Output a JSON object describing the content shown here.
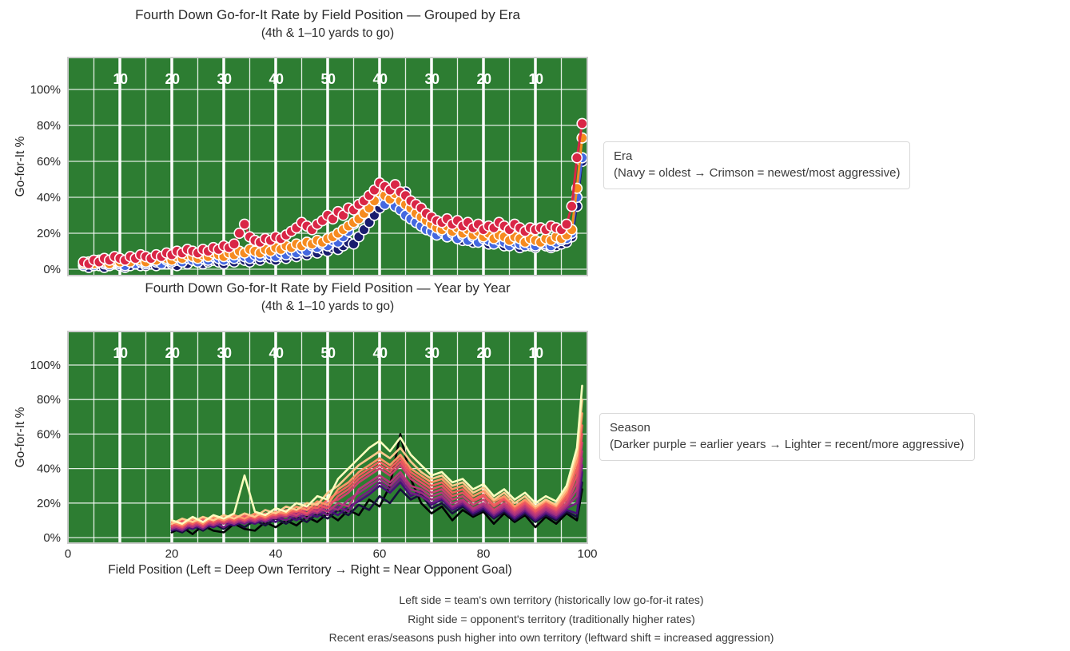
{
  "charts": [
    {
      "title": "Fourth Down Go-for-It Rate by Field Position — Grouped by Era",
      "subtitle": "(4th & 1–10 yards to go)",
      "legend_title": "Era",
      "legend_subtitle": "(Navy = oldest → Crimson = newest/most aggressive)",
      "ylabel": "Go-for-It %"
    },
    {
      "title": "Fourth Down Go-for-It Rate by Field Position — Year by Year",
      "subtitle": "(4th & 1–10 yards to go)",
      "legend_title": "Season",
      "legend_subtitle": "(Darker purple = earlier years → Lighter = recent/more aggressive)",
      "ylabel": "Go-for-It %",
      "xlabel": "Field Position (Left = Deep Own Territory → Right = Near Opponent Goal)"
    }
  ],
  "figure": {
    "footnotes": [
      "Left side = team's own territory (historically low go-for-it rates)",
      "Right side = opponent's territory (traditionally higher rates)",
      "Recent eras/seasons push higher into own territory (leftward shift = increased aggression)"
    ]
  },
  "chart_data": [
    {
      "type": "scatter",
      "title": "Fourth Down Go-for-It Rate by Field Position — Grouped by Era (4th & 1–10 yards to go)",
      "ylabel": "Go-for-It %",
      "xlim": [
        0,
        100
      ],
      "ylim": [
        0,
        118
      ],
      "yticks": [
        0,
        20,
        40,
        60,
        80,
        100
      ],
      "ytick_labels": [
        "0%",
        "20%",
        "40%",
        "60%",
        "80%",
        "100%"
      ],
      "yard_lines": [
        10,
        20,
        30,
        40,
        50,
        60,
        70,
        80,
        90
      ],
      "yard_labels": [
        "10",
        "20",
        "30",
        "40",
        "50",
        "40",
        "30",
        "20",
        "10"
      ],
      "field_color": "#2d7d32",
      "grid_color": "#ffffff",
      "border_color": "#cccccc",
      "marker_edge_color": "#ffffff",
      "x_start": 3,
      "x_step": 1,
      "series": [
        {
          "name": "era-1-oldest-navy",
          "color": "#1a1d6e",
          "values": [
            2,
            1,
            3,
            2,
            1,
            2,
            3,
            2,
            1,
            2,
            3,
            2,
            2,
            3,
            2,
            4,
            3,
            3,
            2,
            4,
            3,
            5,
            4,
            3,
            4,
            5,
            4,
            3,
            5,
            4,
            6,
            5,
            4,
            6,
            5,
            7,
            6,
            5,
            7,
            6,
            8,
            7,
            9,
            8,
            10,
            9,
            11,
            10,
            12,
            11,
            13,
            15,
            14,
            18,
            22,
            26,
            30,
            34,
            38,
            42,
            44,
            41,
            43,
            38,
            35,
            32,
            28,
            25,
            22,
            20,
            18,
            19,
            17,
            16,
            18,
            15,
            17,
            16,
            14,
            16,
            15,
            13,
            15,
            14,
            12,
            14,
            13,
            12,
            14,
            13,
            12,
            13,
            14,
            15,
            18,
            35,
            60
          ]
        },
        {
          "name": "era-2-royal-blue",
          "color": "#4468e0",
          "values": [
            2,
            3,
            2,
            4,
            3,
            2,
            4,
            3,
            2,
            4,
            3,
            4,
            3,
            5,
            4,
            3,
            5,
            4,
            5,
            4,
            6,
            5,
            4,
            6,
            5,
            7,
            6,
            5,
            7,
            6,
            8,
            7,
            6,
            8,
            7,
            9,
            8,
            7,
            9,
            8,
            10,
            9,
            11,
            10,
            13,
            12,
            14,
            13,
            16,
            15,
            18,
            21,
            25,
            28,
            32,
            36,
            40,
            38,
            36,
            39,
            35,
            33,
            30,
            28,
            26,
            24,
            22,
            21,
            19,
            21,
            18,
            20,
            17,
            19,
            16,
            18,
            15,
            17,
            16,
            14,
            16,
            15,
            13,
            15,
            14,
            13,
            14,
            13,
            15,
            14,
            13,
            15,
            16,
            17,
            20,
            40,
            62
          ]
        },
        {
          "name": "era-3-orange",
          "color": "#f68b1f",
          "values": [
            3,
            4,
            3,
            5,
            4,
            3,
            5,
            4,
            5,
            4,
            6,
            5,
            4,
            6,
            5,
            7,
            6,
            5,
            7,
            6,
            8,
            7,
            6,
            8,
            7,
            9,
            8,
            7,
            9,
            8,
            10,
            9,
            11,
            10,
            9,
            11,
            10,
            12,
            11,
            13,
            12,
            14,
            13,
            15,
            14,
            16,
            15,
            17,
            18,
            20,
            22,
            24,
            26,
            28,
            31,
            34,
            38,
            43,
            41,
            39,
            42,
            38,
            36,
            34,
            31,
            29,
            27,
            25,
            23,
            22,
            24,
            21,
            23,
            20,
            22,
            19,
            21,
            18,
            20,
            17,
            19,
            18,
            16,
            18,
            17,
            15,
            17,
            16,
            15,
            17,
            16,
            18,
            17,
            19,
            22,
            45,
            73
          ]
        },
        {
          "name": "era-4-newest-crimson",
          "color": "#d92646",
          "values": [
            4,
            3,
            5,
            4,
            6,
            5,
            7,
            6,
            5,
            7,
            6,
            8,
            7,
            6,
            8,
            7,
            9,
            8,
            10,
            9,
            11,
            10,
            9,
            11,
            10,
            12,
            11,
            13,
            12,
            14,
            20,
            25,
            18,
            16,
            15,
            17,
            16,
            18,
            17,
            19,
            21,
            23,
            26,
            24,
            22,
            25,
            27,
            30,
            28,
            32,
            30,
            34,
            33,
            36,
            38,
            41,
            44,
            48,
            46,
            44,
            47,
            43,
            41,
            38,
            36,
            34,
            31,
            29,
            27,
            26,
            28,
            25,
            27,
            24,
            26,
            23,
            25,
            22,
            24,
            23,
            26,
            24,
            22,
            25,
            23,
            21,
            23,
            22,
            23,
            22,
            24,
            23,
            22,
            25,
            35,
            62,
            81
          ]
        }
      ]
    },
    {
      "type": "line",
      "title": "Fourth Down Go-for-It Rate by Field Position — Year by Year (4th & 1–10 yards to go)",
      "xlabel": "Field Position (Left = Deep Own Territory → Right = Near Opponent Goal)",
      "ylabel": "Go-for-It %",
      "xlim": [
        0,
        100
      ],
      "ylim": [
        0,
        118
      ],
      "yticks": [
        0,
        20,
        40,
        60,
        80,
        100
      ],
      "ytick_labels": [
        "0%",
        "20%",
        "40%",
        "60%",
        "80%",
        "100%"
      ],
      "xticks": [
        0,
        20,
        40,
        60,
        80,
        100
      ],
      "yard_lines": [
        10,
        20,
        30,
        40,
        50,
        60,
        70,
        80,
        90
      ],
      "yard_labels": [
        "10",
        "20",
        "30",
        "40",
        "50",
        "40",
        "30",
        "20",
        "10"
      ],
      "field_color": "#2d7d32",
      "grid_color": "#ffffff",
      "border_color": "#cccccc",
      "x": [
        20,
        22,
        24,
        26,
        28,
        30,
        32,
        34,
        36,
        38,
        40,
        42,
        44,
        46,
        48,
        50,
        52,
        54,
        56,
        58,
        60,
        62,
        64,
        66,
        68,
        70,
        72,
        74,
        76,
        78,
        80,
        82,
        84,
        86,
        88,
        90,
        92,
        94,
        96,
        98,
        99
      ],
      "series": [
        {
          "name": "season-01-darkest",
          "color": "#000004",
          "values": [
            3,
            6,
            2,
            7,
            4,
            3,
            8,
            5,
            4,
            9,
            6,
            10,
            7,
            12,
            9,
            14,
            10,
            16,
            13,
            22,
            18,
            30,
            60,
            34,
            20,
            14,
            18,
            10,
            16,
            12,
            15,
            8,
            14,
            9,
            13,
            6,
            12,
            8,
            14,
            10,
            28
          ]
        },
        {
          "name": "season-02",
          "color": "#180f3e",
          "values": [
            5,
            3,
            7,
            4,
            8,
            5,
            9,
            6,
            10,
            7,
            11,
            8,
            12,
            9,
            14,
            11,
            16,
            13,
            19,
            16,
            24,
            20,
            28,
            22,
            25,
            17,
            20,
            14,
            18,
            13,
            16,
            11,
            15,
            10,
            14,
            9,
            13,
            10,
            15,
            12,
            32
          ]
        },
        {
          "name": "season-03",
          "color": "#451077",
          "values": [
            4,
            7,
            5,
            8,
            6,
            9,
            7,
            10,
            8,
            11,
            9,
            13,
            10,
            14,
            12,
            16,
            13,
            18,
            21,
            25,
            30,
            26,
            32,
            24,
            27,
            19,
            22,
            16,
            19,
            14,
            17,
            12,
            16,
            11,
            15,
            10,
            14,
            11,
            16,
            14,
            38
          ]
        },
        {
          "name": "season-04",
          "color": "#721f81",
          "values": [
            6,
            4,
            8,
            5,
            9,
            6,
            10,
            8,
            11,
            9,
            12,
            10,
            14,
            11,
            16,
            13,
            18,
            15,
            23,
            27,
            32,
            28,
            34,
            26,
            24,
            20,
            23,
            17,
            20,
            15,
            18,
            13,
            17,
            12,
            16,
            11,
            15,
            12,
            17,
            20,
            42
          ]
        },
        {
          "name": "season-05",
          "color": "#9f2f7f",
          "values": [
            5,
            8,
            6,
            9,
            7,
            10,
            8,
            11,
            9,
            12,
            11,
            14,
            12,
            16,
            14,
            18,
            16,
            22,
            26,
            30,
            34,
            30,
            36,
            28,
            26,
            22,
            24,
            18,
            21,
            16,
            19,
            14,
            18,
            13,
            17,
            12,
            16,
            13,
            18,
            24,
            46
          ]
        },
        {
          "name": "season-06",
          "color": "#b73779",
          "values": [
            7,
            5,
            9,
            6,
            10,
            8,
            11,
            9,
            12,
            10,
            13,
            12,
            15,
            13,
            17,
            15,
            20,
            18,
            28,
            32,
            36,
            32,
            38,
            30,
            28,
            24,
            26,
            20,
            22,
            17,
            20,
            15,
            19,
            14,
            18,
            13,
            17,
            14,
            19,
            28,
            50
          ]
        },
        {
          "name": "season-07",
          "color": "#cd4071",
          "values": [
            6,
            9,
            7,
            10,
            8,
            11,
            9,
            12,
            10,
            13,
            12,
            15,
            13,
            17,
            15,
            20,
            22,
            26,
            32,
            36,
            40,
            36,
            42,
            34,
            30,
            26,
            28,
            22,
            24,
            19,
            22,
            16,
            20,
            15,
            19,
            14,
            18,
            15,
            20,
            32,
            55
          ]
        },
        {
          "name": "season-08",
          "color": "#e75263",
          "values": [
            8,
            6,
            10,
            7,
            11,
            9,
            12,
            10,
            13,
            11,
            14,
            13,
            16,
            14,
            19,
            17,
            24,
            28,
            34,
            38,
            42,
            38,
            44,
            36,
            32,
            28,
            30,
            24,
            26,
            21,
            24,
            18,
            22,
            16,
            20,
            15,
            19,
            16,
            22,
            36,
            60
          ]
        },
        {
          "name": "season-09",
          "color": "#f1605d",
          "values": [
            7,
            10,
            8,
            11,
            9,
            12,
            10,
            13,
            11,
            14,
            13,
            16,
            15,
            18,
            17,
            22,
            26,
            30,
            36,
            40,
            44,
            40,
            46,
            38,
            34,
            30,
            32,
            26,
            28,
            22,
            25,
            19,
            23,
            17,
            21,
            16,
            20,
            17,
            24,
            40,
            65
          ]
        },
        {
          "name": "season-10",
          "color": "#fd9567",
          "values": [
            9,
            7,
            11,
            8,
            12,
            10,
            13,
            11,
            14,
            12,
            15,
            14,
            18,
            16,
            21,
            19,
            28,
            32,
            38,
            42,
            46,
            42,
            48,
            40,
            36,
            32,
            34,
            28,
            30,
            24,
            27,
            21,
            24,
            18,
            22,
            17,
            21,
            18,
            26,
            44,
            72
          ]
        },
        {
          "name": "season-11",
          "color": "#fec98d",
          "values": [
            8,
            11,
            9,
            12,
            10,
            13,
            11,
            14,
            12,
            16,
            14,
            18,
            16,
            20,
            19,
            26,
            30,
            36,
            42,
            46,
            50,
            46,
            52,
            44,
            38,
            34,
            36,
            30,
            32,
            26,
            29,
            22,
            26,
            20,
            24,
            18,
            22,
            19,
            28,
            48,
            80
          ]
        },
        {
          "name": "season-12-lightest",
          "color": "#fcfdbf",
          "values": [
            10,
            8,
            12,
            9,
            13,
            11,
            14,
            36,
            15,
            13,
            17,
            15,
            20,
            18,
            24,
            22,
            34,
            40,
            46,
            52,
            56,
            50,
            58,
            48,
            42,
            36,
            38,
            32,
            34,
            28,
            31,
            24,
            28,
            22,
            26,
            20,
            24,
            21,
            30,
            52,
            88
          ]
        }
      ]
    }
  ]
}
